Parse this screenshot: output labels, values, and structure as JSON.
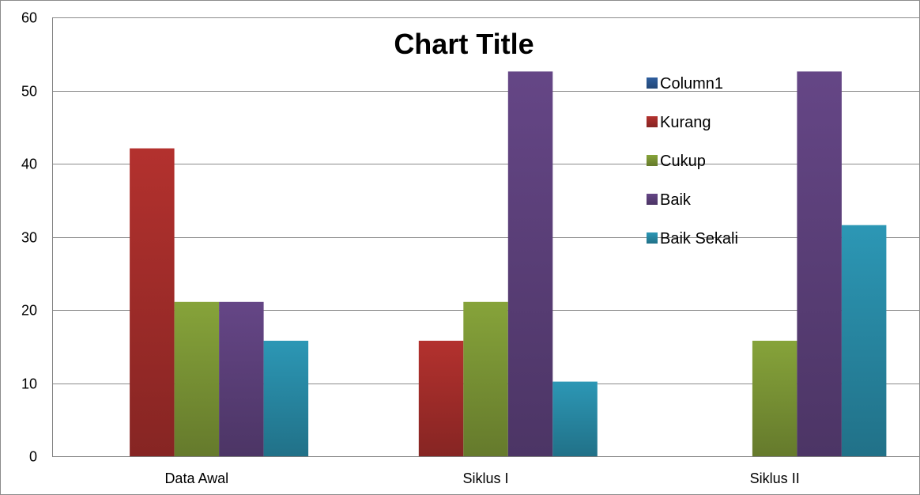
{
  "chart_data": {
    "type": "bar",
    "title": "Chart Title",
    "categories": [
      "Data Awal",
      "Siklus I",
      "Siklus II"
    ],
    "series": [
      {
        "name": "Column1",
        "color": "#2F5F9E",
        "values": [
          0,
          0,
          0
        ]
      },
      {
        "name": "Kurang",
        "color": "#B3312E",
        "values": [
          42.1,
          15.8,
          0
        ]
      },
      {
        "name": "Cukup",
        "color": "#86A33A",
        "values": [
          21.1,
          21.1,
          15.8
        ]
      },
      {
        "name": "Baik",
        "color": "#654686",
        "values": [
          21.1,
          52.6,
          52.6
        ]
      },
      {
        "name": "Baik Sekali",
        "color": "#2C97B5",
        "values": [
          15.8,
          10.2,
          31.6
        ]
      }
    ],
    "ylim": [
      0,
      60
    ],
    "yticks": [
      0,
      10,
      20,
      30,
      40,
      50,
      60
    ],
    "xlabel": "",
    "ylabel": "",
    "grid": true,
    "legend_position": "right, inside plot"
  }
}
